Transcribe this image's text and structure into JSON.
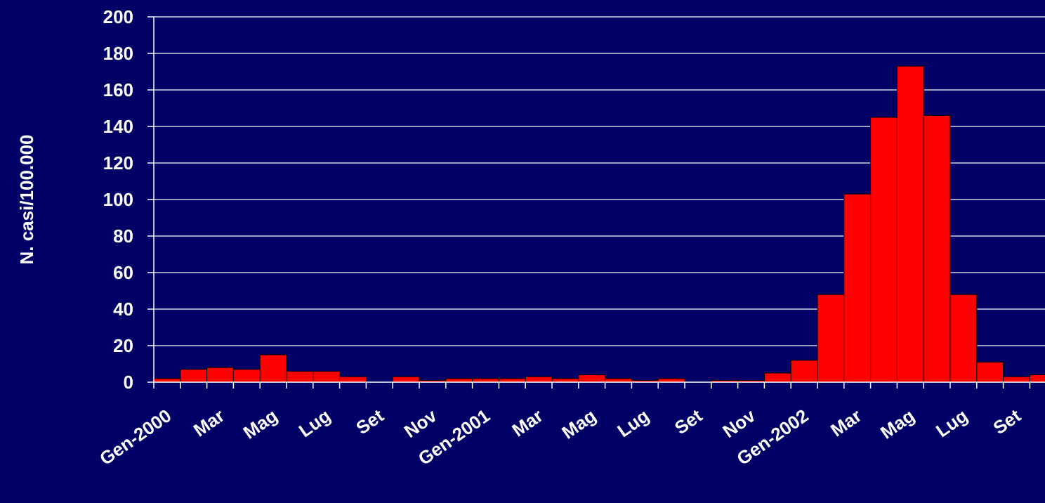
{
  "chart_data": {
    "type": "bar",
    "title": "",
    "xlabel": "",
    "ylabel": "N. casi/100.000",
    "ylim": [
      0,
      200
    ],
    "yticks": [
      0,
      20,
      40,
      60,
      80,
      100,
      120,
      140,
      160,
      180,
      200
    ],
    "grid": true,
    "legend": "none",
    "colors": {
      "background": "#000066",
      "bar": "#ff0000",
      "bar_edge": "#000000",
      "grid": "#ffffff",
      "text": "#ffffff"
    },
    "x_tick_labels": [
      {
        "label": "Gen-2000",
        "index": 0
      },
      {
        "label": "Mar",
        "index": 2
      },
      {
        "label": "Mag",
        "index": 4
      },
      {
        "label": "Lug",
        "index": 6
      },
      {
        "label": "Set",
        "index": 8
      },
      {
        "label": "Nov",
        "index": 10
      },
      {
        "label": "Gen-2001",
        "index": 12
      },
      {
        "label": "Mar",
        "index": 14
      },
      {
        "label": "Mag",
        "index": 16
      },
      {
        "label": "Lug",
        "index": 18
      },
      {
        "label": "Set",
        "index": 20
      },
      {
        "label": "Nov",
        "index": 22
      },
      {
        "label": "Gen-2002",
        "index": 24
      },
      {
        "label": "Mar",
        "index": 26
      },
      {
        "label": "Mag",
        "index": 28
      },
      {
        "label": "Lug",
        "index": 30
      },
      {
        "label": "Set",
        "index": 32
      }
    ],
    "values": [
      2,
      7,
      8,
      7,
      15,
      6,
      6,
      3,
      0,
      3,
      1,
      2,
      2,
      2,
      3,
      2,
      4,
      2,
      1,
      2,
      0,
      1,
      1,
      5,
      12,
      48,
      103,
      145,
      173,
      146,
      48,
      11,
      3,
      4
    ]
  }
}
